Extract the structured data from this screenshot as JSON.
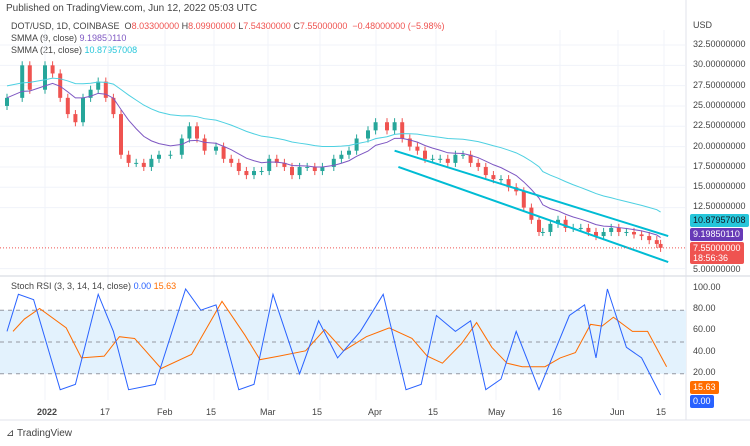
{
  "header": {
    "published": "Published on TradingView.com, Jun 12, 2022 05:03 UTC"
  },
  "legend": {
    "symbol": "DOT/USD, 1D, COINBASE",
    "o_label": "O",
    "o": "8.03300000",
    "h_label": "H",
    "h": "8.09900000",
    "l_label": "L",
    "l": "7.54300000",
    "c_label": "C",
    "c": "7.55000000",
    "change": "−0.48000000 (−5.98%)",
    "smma9_label": "SMMA (9, close)",
    "smma9": "9.19850110",
    "smma21_label": "SMMA (21, close)",
    "smma21": "10.87957008"
  },
  "rsi_legend": {
    "label": "Stoch RSI (3, 3, 14, 14, close)",
    "k": "0.00",
    "d": "15.63"
  },
  "price_axis": {
    "currency": "USD",
    "ticks": [
      "32.50000000",
      "30.00000000",
      "27.50000000",
      "25.00000000",
      "22.50000000",
      "20.00000000",
      "17.50000000",
      "15.00000000",
      "12.50000000",
      "5.00000000"
    ]
  },
  "price_tags": {
    "smma21": "10.87957008",
    "smma9": "9.19850110",
    "last": "7.55000000",
    "countdown": "18:56:36"
  },
  "rsi_axis": {
    "ticks": [
      "100.00",
      "80.00",
      "60.00",
      "40.00",
      "20.00"
    ],
    "d_tag": "15.63",
    "k_tag": "0.00"
  },
  "time_axis": [
    "2022",
    "17",
    "Feb",
    "15",
    "Mar",
    "15",
    "Apr",
    "15",
    "May",
    "16",
    "Jun",
    "15"
  ],
  "footer": {
    "brand": "TradingView"
  },
  "colors": {
    "up": "#26a69a",
    "down": "#ef5350",
    "smma9": "#7e57c2",
    "smma21": "#4dd0e1",
    "channel": "#00bcd4",
    "k": "#2962ff",
    "d": "#ff6d00",
    "band": "#e3f2fd"
  },
  "chart_data": {
    "type": "candlestick",
    "ylim": [
      5,
      32.5
    ],
    "closes": [
      [
        "2021-12-22",
        26
      ],
      [
        "2021-12-26",
        30
      ],
      [
        "2021-12-28",
        27
      ],
      [
        "2022-01-01",
        30
      ],
      [
        "2022-01-03",
        29
      ],
      [
        "2022-01-05",
        26
      ],
      [
        "2022-01-07",
        24
      ],
      [
        "2022-01-09",
        23
      ],
      [
        "2022-01-11",
        26
      ],
      [
        "2022-01-13",
        27
      ],
      [
        "2022-01-15",
        28
      ],
      [
        "2022-01-17",
        26
      ],
      [
        "2022-01-19",
        24
      ],
      [
        "2022-01-21",
        19
      ],
      [
        "2022-01-23",
        18
      ],
      [
        "2022-01-25",
        18
      ],
      [
        "2022-01-27",
        17.5
      ],
      [
        "2022-01-29",
        18.5
      ],
      [
        "2022-01-31",
        19
      ],
      [
        "2022-02-03",
        19
      ],
      [
        "2022-02-06",
        21
      ],
      [
        "2022-02-08",
        22.5
      ],
      [
        "2022-02-10",
        21
      ],
      [
        "2022-02-12",
        19.5
      ],
      [
        "2022-02-15",
        20
      ],
      [
        "2022-02-17",
        18.5
      ],
      [
        "2022-02-19",
        18
      ],
      [
        "2022-02-21",
        17
      ],
      [
        "2022-02-23",
        16.5
      ],
      [
        "2022-02-25",
        17
      ],
      [
        "2022-02-27",
        17
      ],
      [
        "2022-03-01",
        18.5
      ],
      [
        "2022-03-03",
        18
      ],
      [
        "2022-03-05",
        17.5
      ],
      [
        "2022-03-07",
        16.5
      ],
      [
        "2022-03-09",
        17.5
      ],
      [
        "2022-03-11",
        17.5
      ],
      [
        "2022-03-13",
        17
      ],
      [
        "2022-03-15",
        17.5
      ],
      [
        "2022-03-18",
        18.5
      ],
      [
        "2022-03-20",
        19
      ],
      [
        "2022-03-22",
        19.5
      ],
      [
        "2022-03-24",
        21
      ],
      [
        "2022-03-27",
        22
      ],
      [
        "2022-03-29",
        23
      ],
      [
        "2022-04-01",
        22
      ],
      [
        "2022-04-03",
        23
      ],
      [
        "2022-04-05",
        21
      ],
      [
        "2022-04-07",
        20
      ],
      [
        "2022-04-09",
        19.5
      ],
      [
        "2022-04-11",
        18.5
      ],
      [
        "2022-04-13",
        18.5
      ],
      [
        "2022-04-15",
        18.5
      ],
      [
        "2022-04-17",
        18
      ],
      [
        "2022-04-19",
        19
      ],
      [
        "2022-04-21",
        19
      ],
      [
        "2022-04-23",
        18
      ],
      [
        "2022-04-25",
        17.5
      ],
      [
        "2022-04-27",
        16.5
      ],
      [
        "2022-04-29",
        16
      ],
      [
        "2022-05-01",
        16
      ],
      [
        "2022-05-03",
        15
      ],
      [
        "2022-05-05",
        14.5
      ],
      [
        "2022-05-07",
        12.5
      ],
      [
        "2022-05-09",
        11
      ],
      [
        "2022-05-11",
        9.5
      ],
      [
        "2022-05-12",
        9.5
      ],
      [
        "2022-05-14",
        10.5
      ],
      [
        "2022-05-16",
        11
      ],
      [
        "2022-05-18",
        10
      ],
      [
        "2022-05-20",
        10
      ],
      [
        "2022-05-22",
        10
      ],
      [
        "2022-05-24",
        9.5
      ],
      [
        "2022-05-26",
        9
      ],
      [
        "2022-05-28",
        9.5
      ],
      [
        "2022-05-30",
        10
      ],
      [
        "2022-06-01",
        9.5
      ],
      [
        "2022-06-03",
        9.5
      ],
      [
        "2022-06-05",
        9.2
      ],
      [
        "2022-06-07",
        9
      ],
      [
        "2022-06-09",
        8.5
      ],
      [
        "2022-06-11",
        8.03
      ],
      [
        "2022-06-12",
        7.55
      ]
    ],
    "stoch_k": [
      [
        "2021-12-22",
        60
      ],
      [
        "2021-12-25",
        95
      ],
      [
        "2021-12-29",
        90
      ],
      [
        "2022-01-05",
        5
      ],
      [
        "2022-01-09",
        10
      ],
      [
        "2022-01-15",
        95
      ],
      [
        "2022-01-19",
        60
      ],
      [
        "2022-01-23",
        5
      ],
      [
        "2022-01-30",
        10
      ],
      [
        "2022-02-07",
        100
      ],
      [
        "2022-02-11",
        80
      ],
      [
        "2022-02-15",
        85
      ],
      [
        "2022-02-21",
        5
      ],
      [
        "2022-02-25",
        10
      ],
      [
        "2022-03-02",
        95
      ],
      [
        "2022-03-09",
        20
      ],
      [
        "2022-03-14",
        70
      ],
      [
        "2022-03-19",
        35
      ],
      [
        "2022-03-25",
        60
      ],
      [
        "2022-03-31",
        95
      ],
      [
        "2022-04-06",
        5
      ],
      [
        "2022-04-10",
        10
      ],
      [
        "2022-04-14",
        75
      ],
      [
        "2022-04-19",
        60
      ],
      [
        "2022-04-23",
        70
      ],
      [
        "2022-04-27",
        5
      ],
      [
        "2022-05-01",
        15
      ],
      [
        "2022-05-05",
        60
      ],
      [
        "2022-05-11",
        5
      ],
      [
        "2022-05-15",
        40
      ],
      [
        "2022-05-19",
        75
      ],
      [
        "2022-05-23",
        85
      ],
      [
        "2022-05-26",
        35
      ],
      [
        "2022-05-29",
        100
      ],
      [
        "2022-06-03",
        45
      ],
      [
        "2022-06-07",
        35
      ],
      [
        "2022-06-12",
        0
      ]
    ],
    "rsi_ylim": [
      0,
      100
    ],
    "rsi_bands": [
      20,
      80
    ]
  }
}
